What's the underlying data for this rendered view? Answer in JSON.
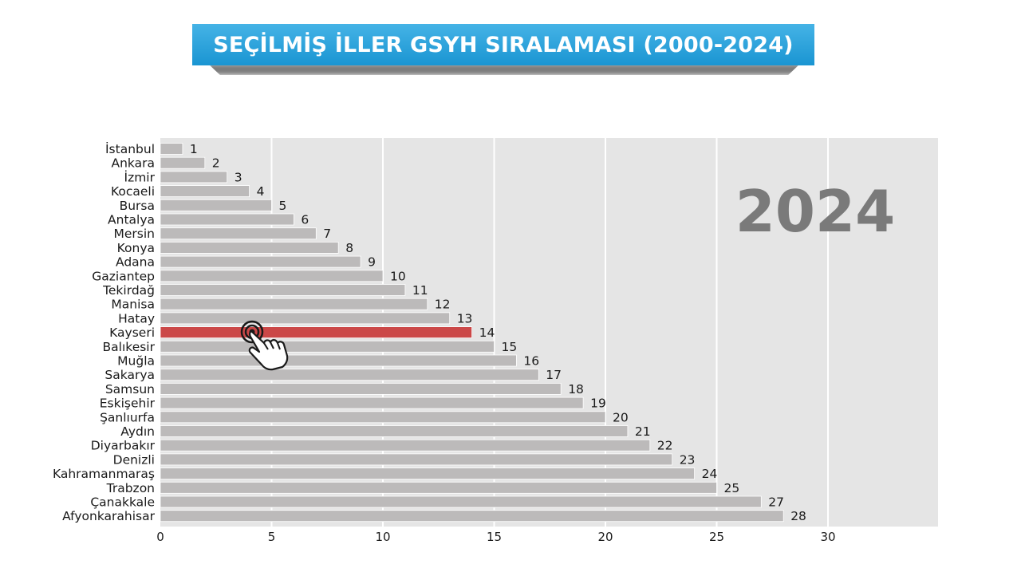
{
  "header": {
    "title": "SEÇİLMİŞ İLLER GSYH SIRALAMASI (2000-2024)"
  },
  "colors": {
    "bar": "#bcbaba",
    "highlight": "#cb4848",
    "plot_bg": "#e5e5e5",
    "title_bg": "#2a9fd8",
    "year_text": "#7a7a7a"
  },
  "icons": {
    "pointer": "hand-pointer-icon"
  },
  "chart_data": {
    "type": "bar",
    "orientation": "horizontal",
    "year_label": "2024",
    "highlight": "Kayseri",
    "xlim": [
      0,
      35
    ],
    "xticks": [
      0,
      5,
      10,
      15,
      20,
      25,
      30
    ],
    "categories": [
      "İstanbul",
      "Ankara",
      "İzmir",
      "Kocaeli",
      "Bursa",
      "Antalya",
      "Mersin",
      "Konya",
      "Adana",
      "Gaziantep",
      "Tekirdağ",
      "Manisa",
      "Hatay",
      "Kayseri",
      "Balıkesir",
      "Muğla",
      "Sakarya",
      "Samsun",
      "Eskişehir",
      "Şanlıurfa",
      "Aydın",
      "Diyarbakır",
      "Denizli",
      "Kahramanmaraş",
      "Trabzon",
      "Çanakkale",
      "Afyonkarahisar"
    ],
    "values": [
      1,
      2,
      3,
      4,
      5,
      6,
      7,
      8,
      9,
      10,
      11,
      12,
      13,
      14,
      15,
      16,
      17,
      18,
      19,
      20,
      21,
      22,
      23,
      24,
      25,
      27,
      28
    ],
    "grid": true
  }
}
